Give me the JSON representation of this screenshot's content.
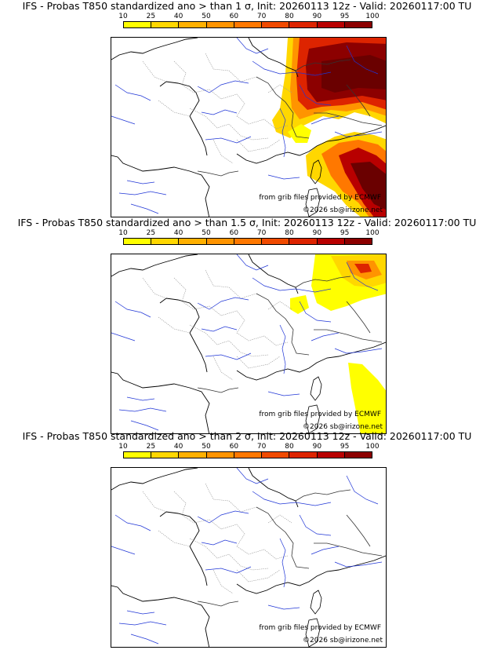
{
  "colorbar": {
    "ticks": [
      "10",
      "25",
      "40",
      "50",
      "60",
      "70",
      "80",
      "90",
      "95",
      "100"
    ],
    "colors": [
      "#ffff00",
      "#ffd700",
      "#ffb000",
      "#ff9400",
      "#ff7800",
      "#f04a00",
      "#dd2400",
      "#b80000",
      "#8c0000"
    ]
  },
  "panels": [
    {
      "title": "IFS - Probas T850  standardized ano > than 1 σ, Init: 20260113 12z - Valid: 20260117:00 TU",
      "credit_source": "from grib files provided by ECMWF",
      "credit_copyright": "©2026 sb@irizone.net",
      "field_level": "high"
    },
    {
      "title": "IFS - Probas T850  standardized ano > than 1.5 σ, Init: 20260113 12z - Valid: 20260117:00 TU",
      "credit_source": "from grib files provided by ECMWF",
      "credit_copyright": "©2026 sb@irizone.net",
      "field_level": "medium"
    },
    {
      "title": "IFS - Probas T850  standardized ano > than 2 σ, Init: 20260113 12z - Valid: 20260117:00 TU",
      "credit_source": "from grib files provided by ECMWF",
      "credit_copyright": "©2026 sb@irizone.net",
      "field_level": "none"
    }
  ]
}
